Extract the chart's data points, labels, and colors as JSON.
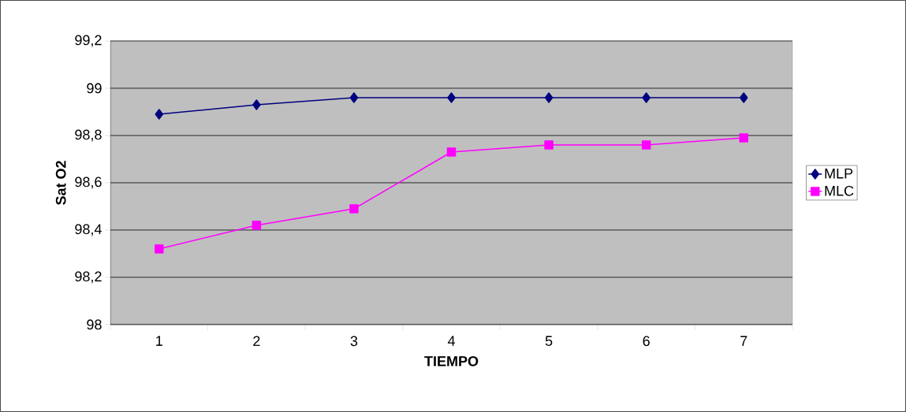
{
  "chart_data": {
    "type": "line",
    "xlabel": "TIEMPO",
    "ylabel": "Sat O2",
    "categories": [
      "1",
      "2",
      "3",
      "4",
      "5",
      "6",
      "7"
    ],
    "series": [
      {
        "name": "MLP",
        "color": "#000080",
        "marker": "diamond",
        "values": [
          98.89,
          98.93,
          98.96,
          98.96,
          98.96,
          98.96,
          98.96
        ]
      },
      {
        "name": "MLC",
        "color": "#ff00ff",
        "marker": "square",
        "values": [
          98.32,
          98.42,
          98.49,
          98.73,
          98.76,
          98.76,
          98.79
        ]
      }
    ],
    "ylim": [
      98,
      99.2
    ],
    "yticks": [
      98,
      {
        "value": 98.2,
        "label": "98,2"
      },
      {
        "value": 98.4,
        "label": "98,4"
      },
      {
        "value": 98.6,
        "label": "98,6"
      },
      {
        "value": 98.8,
        "label": "98,8"
      },
      99,
      {
        "value": 99.2,
        "label": "99,2"
      }
    ],
    "grid": "y",
    "legend": "right",
    "line_style": "solid"
  }
}
